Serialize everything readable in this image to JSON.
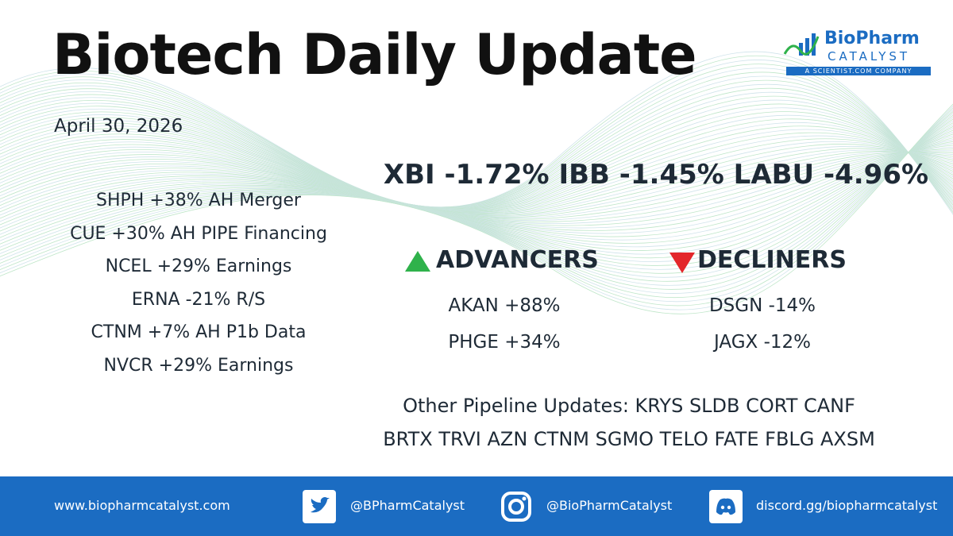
{
  "header": {
    "title": "Biotech Daily Update",
    "date": "April 30, 2026"
  },
  "logo": {
    "name": "BioPharm",
    "subname": "CATALYST",
    "tagline": "A SCIENTIST.COM COMPANY"
  },
  "indices": "XBI -1.72% IBB -1.45% LABU -4.96%",
  "movers": [
    "SHPH +38% AH Merger",
    "CUE +30% AH PIPE Financing",
    "NCEL +29% Earnings",
    "ERNA -21% R/S",
    "CTNM +7% AH P1b Data",
    "NVCR +29% Earnings"
  ],
  "advancers": {
    "heading": "ADVANCERS",
    "items": [
      "AKAN +88%",
      "PHGE +34%"
    ]
  },
  "decliners": {
    "heading": "DECLINERS",
    "items": [
      "DSGN -14%",
      "JAGX -12%"
    ]
  },
  "pipeline": [
    "Other Pipeline Updates: KRYS SLDB CORT CANF",
    "BRTX TRVI AZN CTNM SGMO TELO FATE FBLG AXSM"
  ],
  "footer": {
    "website": "www.biopharmcatalyst.com",
    "twitter": "@BPharmCatalyst",
    "instagram": "@BioPharmCatalyst",
    "discord": "discord.gg/biopharmcatalyst"
  }
}
